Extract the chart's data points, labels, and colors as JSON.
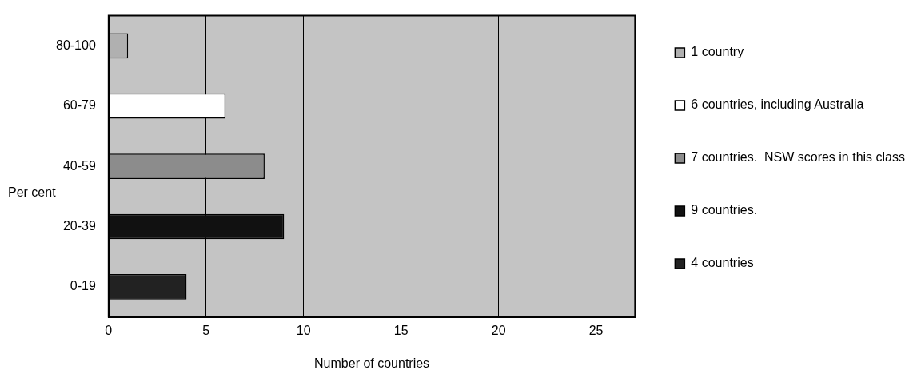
{
  "chart_data": {
    "type": "bar",
    "orientation": "horizontal",
    "xlabel": "Number of countries",
    "ylabel": "Per cent",
    "categories": [
      "80-100",
      "60-79",
      "40-59",
      "20-39",
      "0-19"
    ],
    "series": [
      {
        "name": "1 country",
        "color": "#b0b0b0",
        "values": [
          1,
          null,
          null,
          null,
          null
        ]
      },
      {
        "name": "6 countries, including Australia",
        "color": "#ffffff",
        "values": [
          null,
          6,
          null,
          null,
          null
        ]
      },
      {
        "name": "7 countries.  NSW scores in this class",
        "color": "#8c8c8c",
        "values": [
          null,
          null,
          8,
          null,
          null
        ]
      },
      {
        "name": "9 countries.",
        "color": "#111111",
        "values": [
          null,
          null,
          null,
          9,
          null
        ]
      },
      {
        "name": "4 countries",
        "color": "#222222",
        "values": [
          null,
          null,
          null,
          null,
          4
        ]
      }
    ],
    "xlim": [
      0,
      27
    ],
    "xticks": [
      0,
      5,
      10,
      15,
      20,
      25
    ],
    "grid": "x",
    "legend": "right"
  }
}
